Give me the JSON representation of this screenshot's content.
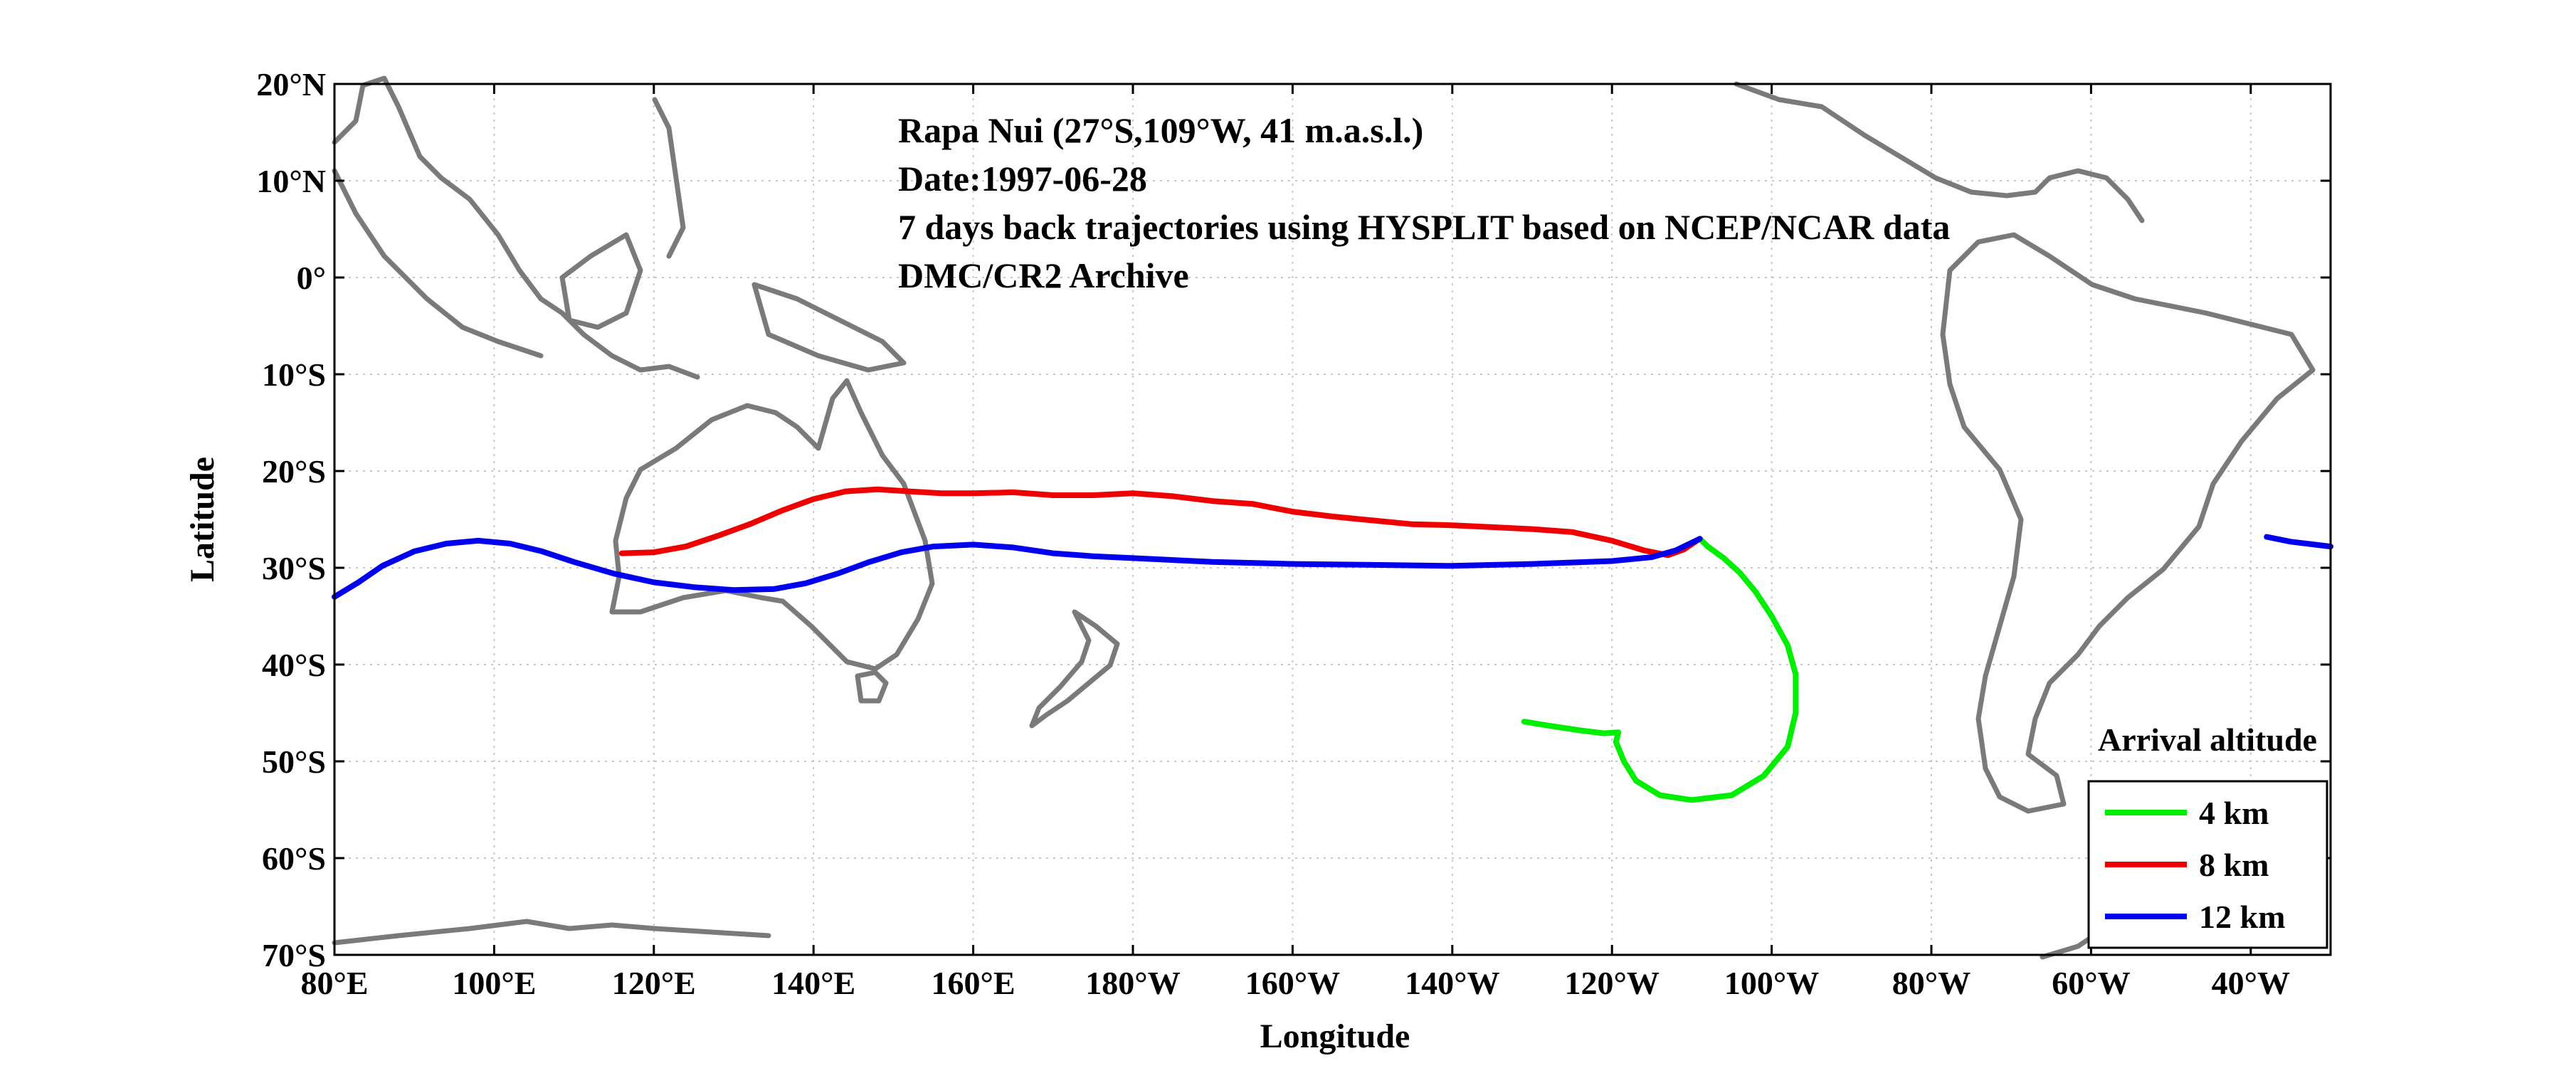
{
  "chart_data": {
    "type": "line",
    "title": "",
    "annotations": [
      "Rapa Nui (27°S,109°W, 41 m.a.s.l.)",
      "Date:1997-06-28",
      "7 days back trajectories using HYSPLIT based on NCEP/NCAR data",
      "DMC/CR2 Archive"
    ],
    "xlabel": "Longitude",
    "ylabel": "Latitude",
    "xlim": [
      80,
      330
    ],
    "ylim": [
      -70,
      20
    ],
    "grid": true,
    "x_ticks": [
      {
        "value": 80,
        "label": "80°E"
      },
      {
        "value": 100,
        "label": "100°E"
      },
      {
        "value": 120,
        "label": "120°E"
      },
      {
        "value": 140,
        "label": "140°E"
      },
      {
        "value": 160,
        "label": "160°E"
      },
      {
        "value": 180,
        "label": "180°W"
      },
      {
        "value": 200,
        "label": "160°W"
      },
      {
        "value": 220,
        "label": "140°W"
      },
      {
        "value": 240,
        "label": "120°W"
      },
      {
        "value": 260,
        "label": "100°W"
      },
      {
        "value": 280,
        "label": "80°W"
      },
      {
        "value": 300,
        "label": "60°W"
      },
      {
        "value": 320,
        "label": "40°W"
      }
    ],
    "y_ticks": [
      {
        "value": 20,
        "label": "20°N"
      },
      {
        "value": 10,
        "label": "10°N"
      },
      {
        "value": 0,
        "label": "0°"
      },
      {
        "value": -10,
        "label": "10°S"
      },
      {
        "value": -20,
        "label": "20°S"
      },
      {
        "value": -30,
        "label": "30°S"
      },
      {
        "value": -40,
        "label": "40°S"
      },
      {
        "value": -50,
        "label": "50°S"
      },
      {
        "value": -60,
        "label": "60°S"
      },
      {
        "value": -70,
        "label": "70°S"
      }
    ],
    "legend": {
      "title": "Arrival altitude",
      "position": "bottom-right"
    },
    "series": [
      {
        "name": "4 km",
        "color": "#00ee00",
        "points": [
          [
            251,
            -27
          ],
          [
            252,
            -27.8
          ],
          [
            254,
            -29
          ],
          [
            256,
            -30.5
          ],
          [
            258,
            -32.5
          ],
          [
            260,
            -35
          ],
          [
            262,
            -38
          ],
          [
            263,
            -41
          ],
          [
            263,
            -45
          ],
          [
            262,
            -48.5
          ],
          [
            259,
            -51.5
          ],
          [
            255,
            -53.5
          ],
          [
            250,
            -54
          ],
          [
            246,
            -53.5
          ],
          [
            243,
            -52
          ],
          [
            241.5,
            -50
          ],
          [
            240.5,
            -48
          ],
          [
            240.8,
            -47
          ],
          [
            239,
            -47.1
          ],
          [
            236,
            -46.8
          ],
          [
            232,
            -46.3
          ],
          [
            229,
            -45.9
          ]
        ]
      },
      {
        "name": "8 km",
        "color": "#ee0000",
        "points": [
          [
            116,
            -28.5
          ],
          [
            120,
            -28.4
          ],
          [
            124,
            -27.8
          ],
          [
            128,
            -26.7
          ],
          [
            132,
            -25.5
          ],
          [
            136,
            -24.1
          ],
          [
            140,
            -22.9
          ],
          [
            144,
            -22.1
          ],
          [
            148,
            -21.9
          ],
          [
            152,
            -22.1
          ],
          [
            156,
            -22.3
          ],
          [
            160,
            -22.3
          ],
          [
            165,
            -22.2
          ],
          [
            170,
            -22.5
          ],
          [
            175,
            -22.5
          ],
          [
            180,
            -22.3
          ],
          [
            185,
            -22.6
          ],
          [
            190,
            -23.1
          ],
          [
            195,
            -23.4
          ],
          [
            200,
            -24.2
          ],
          [
            205,
            -24.7
          ],
          [
            210,
            -25.1
          ],
          [
            215,
            -25.5
          ],
          [
            220,
            -25.6
          ],
          [
            225,
            -25.8
          ],
          [
            230,
            -26
          ],
          [
            235,
            -26.3
          ],
          [
            240,
            -27.2
          ],
          [
            244,
            -28.2
          ],
          [
            247,
            -28.7
          ],
          [
            249,
            -28.1
          ],
          [
            251,
            -27
          ]
        ]
      },
      {
        "name": "12 km",
        "color": "#0000ee",
        "points": [
          [
            80,
            -33
          ],
          [
            83,
            -31.5
          ],
          [
            86,
            -29.8
          ],
          [
            90,
            -28.3
          ],
          [
            94,
            -27.5
          ],
          [
            98,
            -27.2
          ],
          [
            102,
            -27.5
          ],
          [
            106,
            -28.3
          ],
          [
            110,
            -29.4
          ],
          [
            115,
            -30.6
          ],
          [
            120,
            -31.5
          ],
          [
            125,
            -32
          ],
          [
            130,
            -32.3
          ],
          [
            135,
            -32.2
          ],
          [
            139,
            -31.6
          ],
          [
            143,
            -30.6
          ],
          [
            147,
            -29.4
          ],
          [
            151,
            -28.4
          ],
          [
            155,
            -27.8
          ],
          [
            160,
            -27.6
          ],
          [
            165,
            -27.9
          ],
          [
            170,
            -28.5
          ],
          [
            175,
            -28.8
          ],
          [
            180,
            -29
          ],
          [
            190,
            -29.4
          ],
          [
            200,
            -29.6
          ],
          [
            210,
            -29.7
          ],
          [
            220,
            -29.8
          ],
          [
            230,
            -29.6
          ],
          [
            240,
            -29.3
          ],
          [
            245,
            -28.9
          ],
          [
            248,
            -28.2
          ],
          [
            251,
            -27
          ]
        ]
      },
      {
        "name": "",
        "color": "#0000ee",
        "points": [
          [
            322,
            -26.8
          ],
          [
            325,
            -27.3
          ],
          [
            328,
            -27.6
          ],
          [
            330,
            -27.8
          ]
        ]
      }
    ]
  }
}
